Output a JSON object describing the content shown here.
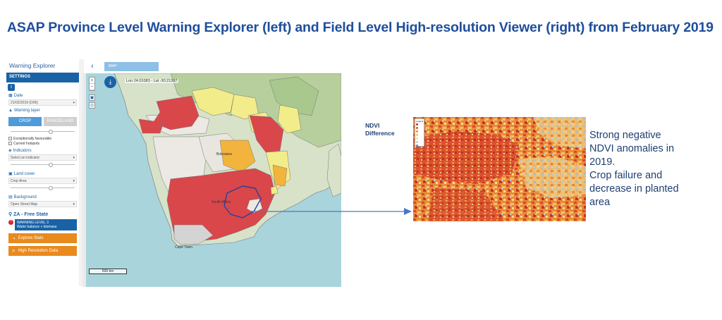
{
  "slide_title": "ASAP Province Level Warning Explorer (left) and Field Level High-resolution Viewer (right) from February 2019",
  "sidebar": {
    "header": "Warning Explorer",
    "settings_label": "SETTINGS",
    "date_label": "Date",
    "date_value": "21/02/2019 (D06)",
    "warning_layer_label": "Warning layer",
    "crop_button": "CROP",
    "rangeland_button": "RANGELAND",
    "check_exceptionally": "Exceptionally favourable",
    "check_hotspots": "Current hotspots",
    "indicators_label": "Indicators",
    "indicators_value": "Select an indicator",
    "land_cover_label": "Land cover",
    "land_cover_value": "Crop Area",
    "background_label": "Background",
    "background_value": "Open Street Map",
    "region": "ZA - Free State",
    "warning_line1": "WARNING LEVEL 3",
    "warning_line2": "Water balance + biomass",
    "explore_button": "Explore Stats",
    "highres_button": "High Resolution Data"
  },
  "map": {
    "tab": "MAP",
    "coords": "Lon 24.01083 - Lat -30.21387",
    "scale": "500 km",
    "label_south_africa": "South Africa",
    "label_botswana": "Botswana",
    "label_cape_town": "Cape Town"
  },
  "ndvi": {
    "title_line1": "NDVI",
    "title_line2": "Difference",
    "legend_title": "Legend"
  },
  "caption_lines": [
    "Strong negative",
    "NDVI anomalies in",
    "2019.",
    "Crop failure and",
    "decrease in planted",
    "area"
  ],
  "colors": {
    "title_blue": "#1f4e9c",
    "warning_red": "#d9474a",
    "warning_orange": "#f2b43c",
    "warning_yellow": "#f3ec8a",
    "land_grey": "#e9e6e0",
    "accent_orange": "#e98a1e"
  }
}
